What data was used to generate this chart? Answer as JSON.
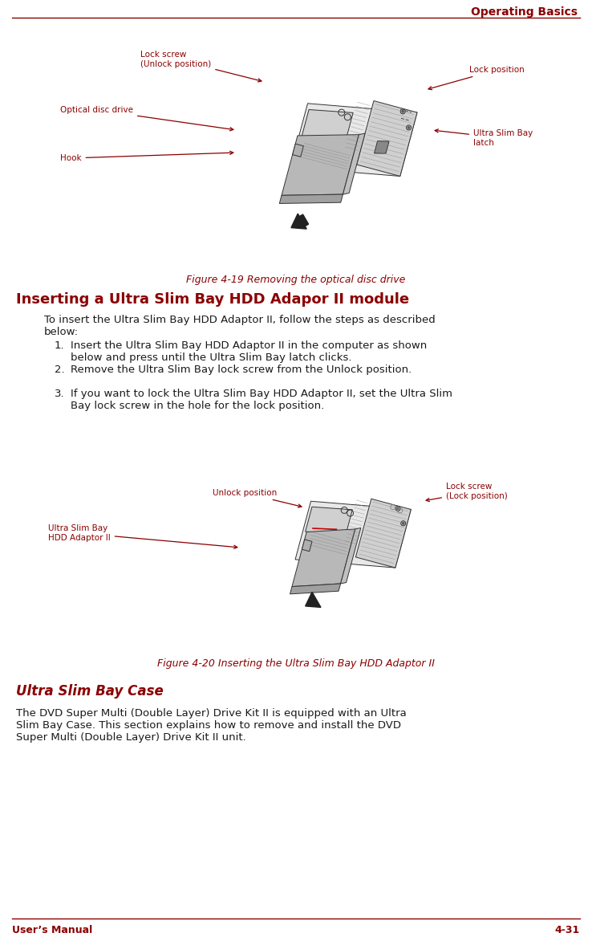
{
  "bg_color": "#ffffff",
  "header_text": "Operating Basics",
  "header_color": "#8B0000",
  "footer_left": "User’s Manual",
  "footer_right": "4-31",
  "footer_color": "#8B0000",
  "line_color": "#8B0000",
  "section_heading": "Inserting a Ultra Slim Bay HDD Adapor II module",
  "section_heading_color": "#8B0000",
  "fig1_caption": "Figure 4-19 Removing the optical disc drive",
  "fig2_caption": "Figure 4-20 Inserting the Ultra Slim Bay HDD Adaptor II",
  "caption_color": "#8B0000",
  "body_color": "#1a1a1a",
  "intro_text": "To insert the Ultra Slim Bay HDD Adaptor II, follow the steps as described\nbelow:",
  "steps": [
    "Insert the Ultra Slim Bay HDD Adaptor II in the computer as shown\nbelow and press until the Ultra Slim Bay latch clicks.",
    "Remove the Ultra Slim Bay lock screw from the Unlock position.",
    "If you want to lock the Ultra Slim Bay HDD Adaptor II, set the Ultra Slim\nBay lock screw in the hole for the lock position."
  ],
  "subsection_heading": "Ultra Slim Bay Case",
  "subsection_heading_color": "#8B0000",
  "subsection_text": "The DVD Super Multi (Double Layer) Drive Kit II is equipped with an Ultra\nSlim Bay Case. This section explains how to remove and install the DVD\nSuper Multi (Double Layer) Drive Kit II unit.",
  "diagram_edge": "#333333",
  "diagram_fill_light": "#e8e8e8",
  "diagram_fill_mid": "#d0d0d0",
  "diagram_fill_dark": "#b8b8b8",
  "diagram_fill_darker": "#a0a0a0",
  "label_color": "#8B0000",
  "label_fontsize": 7.5,
  "body_fontsize": 9.5,
  "heading_fontsize": 13,
  "sub_heading_fontsize": 12
}
